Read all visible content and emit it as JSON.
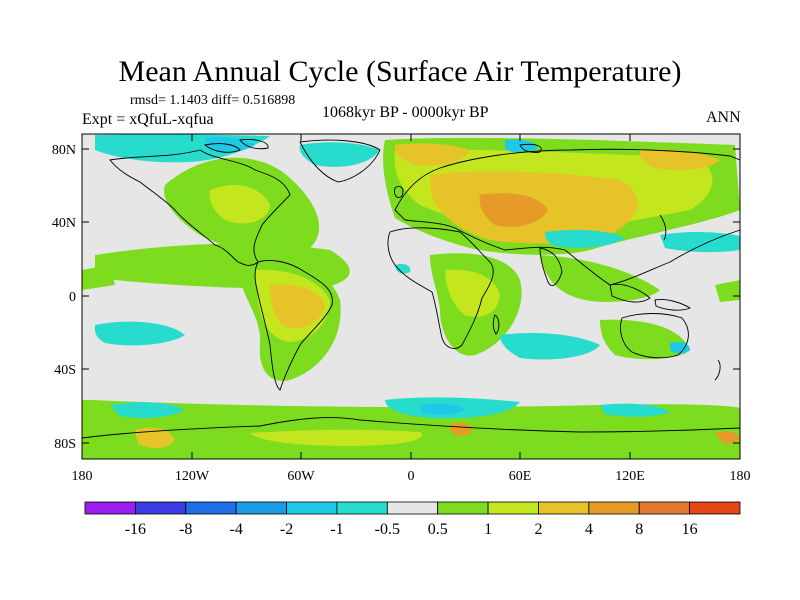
{
  "title": "Mean Annual Cycle (Surface Air Temperature)",
  "stats": "rmsd= 1.1403 diff= 0.516898",
  "experiment": "Expt = xQfuL-xqfua",
  "period": "1068kyr BP - 0000kyr BP",
  "season": "ANN",
  "lat_ticks": [
    "80N",
    "40N",
    "0",
    "40S",
    "80S"
  ],
  "lon_ticks": [
    "180",
    "120W",
    "60W",
    "0",
    "60E",
    "120E",
    "180"
  ],
  "legend": {
    "labels": [
      "-16",
      "-8",
      "-4",
      "-2",
      "-1",
      "-0.5",
      "0.5",
      "1",
      "2",
      "4",
      "8",
      "16"
    ],
    "colors": [
      "#9a1ef0",
      "#3c3ce6",
      "#1e6ee6",
      "#1e9be6",
      "#1ec8e6",
      "#28dccd",
      "#e6e6e6",
      "#7ddc1e",
      "#c3e61e",
      "#e6c328",
      "#e69b28",
      "#e6782d",
      "#e64614"
    ]
  },
  "colors": {
    "background": "#e6e6e6",
    "coastline": "#000000"
  }
}
